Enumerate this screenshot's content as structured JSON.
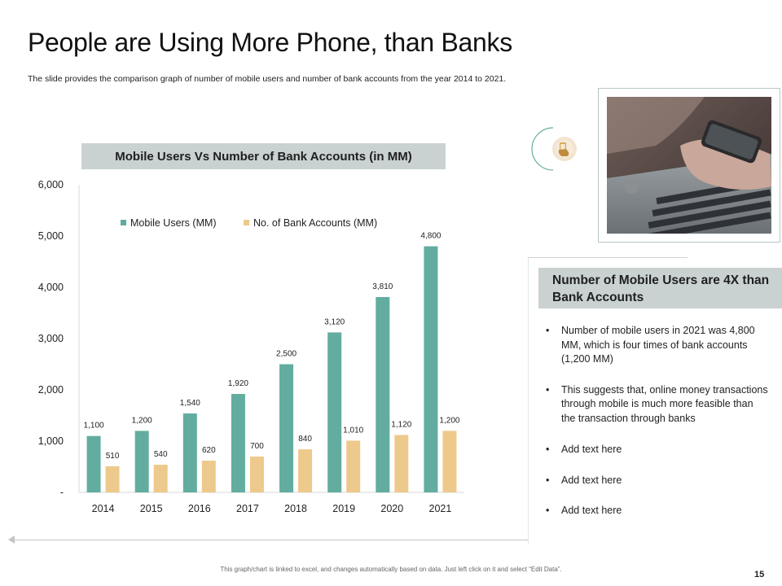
{
  "slide": {
    "title": "People are Using More Phone, than Banks",
    "subtitle": "The slide provides the comparison graph of number of mobile users and number of bank accounts from the year 2014 to 2021.",
    "footer_note": "This graph/chart is linked to excel, and changes automatically based on data. Just left click on it and select “Edit Data”.",
    "page_number": "15"
  },
  "chart_data": {
    "type": "bar",
    "title": "Mobile Users Vs Number of Bank Accounts (in MM)",
    "categories": [
      "2014",
      "2015",
      "2016",
      "2017",
      "2018",
      "2019",
      "2020",
      "2021"
    ],
    "series": [
      {
        "name": "Mobile Users (MM)",
        "color": "#62ad9f",
        "values": [
          1100,
          1200,
          1540,
          1920,
          2500,
          3120,
          3810,
          4800
        ],
        "labels": [
          "1,100",
          "1,200",
          "1,540",
          "1,920",
          "2,500",
          "3,120",
          "3,810",
          "4,800"
        ]
      },
      {
        "name": "No. of Bank Accounts (MM)",
        "color": "#edc98c",
        "values": [
          510,
          540,
          620,
          700,
          840,
          1010,
          1120,
          1200
        ],
        "labels": [
          "510",
          "540",
          "620",
          "700",
          "840",
          "1,010",
          "1,120",
          "1,200"
        ]
      }
    ],
    "ylim": [
      0,
      6000
    ],
    "yticks": [
      0,
      1000,
      2000,
      3000,
      4000,
      5000,
      6000
    ],
    "ytick_labels": [
      "-",
      "1,000",
      "2,000",
      "3,000",
      "4,000",
      "5,000",
      "6,000"
    ],
    "legend_position": "top",
    "grid": false
  },
  "info_panel": {
    "title": "Number of Mobile Users are 4X than Bank Accounts",
    "bullets": [
      "Number of mobile users in 2021 was 4,800 MM, which is four times of bank accounts (1,200 MM)",
      "This suggests that, online money transactions through mobile is much more feasible than the transaction through banks",
      "Add text here",
      "Add text here",
      "Add text here"
    ]
  },
  "icons": {
    "feature_icon": "hand-phone-icon",
    "photo": "phone-laptop-photo"
  },
  "colors": {
    "accent_teal": "#62ad9f",
    "accent_tan": "#edc98c",
    "header_gray": "#c9d2d1"
  }
}
